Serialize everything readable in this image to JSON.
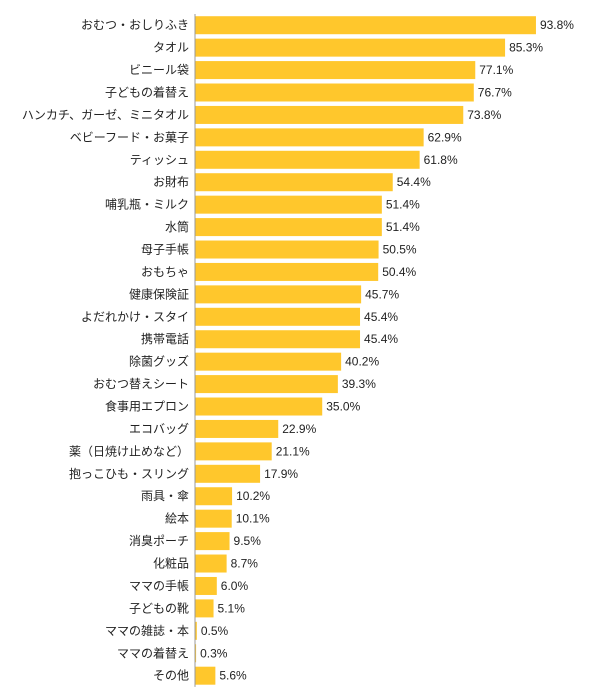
{
  "chart_data": {
    "type": "bar",
    "orientation": "horizontal",
    "bar_color": "#FFC72C",
    "axis_color": "#999999",
    "value_suffix": "%",
    "xlim": [
      0,
      100
    ],
    "grid": false,
    "categories": [
      "おむつ・おしりふき",
      "タオル",
      "ビニール袋",
      "子どもの着替え",
      "ハンカチ、ガーゼ、ミニタオル",
      "ベビーフード・お菓子",
      "ティッシュ",
      "お財布",
      "哺乳瓶・ミルク",
      "水筒",
      "母子手帳",
      "おもちゃ",
      "健康保険証",
      "よだれかけ・スタイ",
      "携帯電話",
      "除菌グッズ",
      "おむつ替えシート",
      "食事用エプロン",
      "エコバッグ",
      "薬（日焼け止めなど）",
      "抱っこひも・スリング",
      "雨具・傘",
      "絵本",
      "消臭ポーチ",
      "化粧品",
      "ママの手帳",
      "子どもの靴",
      "ママの雑誌・本",
      "ママの着替え",
      "その他"
    ],
    "values": [
      93.8,
      85.3,
      77.1,
      76.7,
      73.8,
      62.9,
      61.8,
      54.4,
      51.4,
      51.4,
      50.5,
      50.4,
      45.7,
      45.4,
      45.4,
      40.2,
      39.3,
      35.0,
      22.9,
      21.1,
      17.9,
      10.2,
      10.1,
      9.5,
      8.7,
      6.0,
      5.1,
      0.5,
      0.3,
      5.6
    ]
  }
}
